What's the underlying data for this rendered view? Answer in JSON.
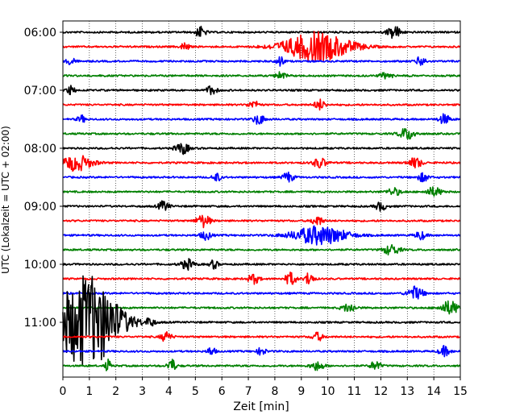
{
  "chart_data": {
    "type": "line",
    "subtype": "helicorder",
    "xlabel": "Zeit  [min]",
    "ylabel": "UTC (Lokalzeit = UTC + 02:00)",
    "xlim": [
      0,
      15
    ],
    "x_ticks": [
      "0",
      "1",
      "2",
      "3",
      "4",
      "5",
      "6",
      "7",
      "8",
      "9",
      "10",
      "11",
      "12",
      "13",
      "14",
      "15"
    ],
    "y_ticks": [
      "06:00",
      "07:00",
      "08:00",
      "09:00",
      "10:00",
      "11:00"
    ],
    "grid": "vertical dotted lines at each minute",
    "trace_interval_minutes": 15,
    "colors": [
      "#000000",
      "#ff0000",
      "#0000ff",
      "#008000"
    ],
    "traces": [
      {
        "start": "06:00",
        "color": "#000000",
        "events": [
          {
            "t": 5.2,
            "amp": 0.35,
            "dur": 0.4
          },
          {
            "t": 12.5,
            "amp": 0.45,
            "dur": 0.5
          }
        ]
      },
      {
        "start": "06:15",
        "color": "#ff0000",
        "events": [
          {
            "t": 4.6,
            "amp": 0.3,
            "dur": 0.3
          },
          {
            "t": 9.6,
            "amp": 1.0,
            "dur": 2.5
          }
        ]
      },
      {
        "start": "06:30",
        "color": "#0000ff",
        "events": [
          {
            "t": 0.3,
            "amp": 0.3,
            "dur": 0.3
          },
          {
            "t": 8.2,
            "amp": 0.35,
            "dur": 0.3
          },
          {
            "t": 13.5,
            "amp": 0.3,
            "dur": 0.4
          }
        ]
      },
      {
        "start": "06:45",
        "color": "#008000",
        "events": [
          {
            "t": 8.2,
            "amp": 0.25,
            "dur": 0.4
          },
          {
            "t": 12.2,
            "amp": 0.2,
            "dur": 0.5
          }
        ]
      },
      {
        "start": "07:00",
        "color": "#000000",
        "events": [
          {
            "t": 0.3,
            "amp": 0.3,
            "dur": 0.3
          },
          {
            "t": 5.6,
            "amp": 0.3,
            "dur": 0.4
          }
        ]
      },
      {
        "start": "07:15",
        "color": "#ff0000",
        "events": [
          {
            "t": 7.2,
            "amp": 0.25,
            "dur": 0.4
          },
          {
            "t": 9.7,
            "amp": 0.35,
            "dur": 0.4
          }
        ]
      },
      {
        "start": "07:30",
        "color": "#0000ff",
        "events": [
          {
            "t": 0.7,
            "amp": 0.25,
            "dur": 0.3
          },
          {
            "t": 7.4,
            "amp": 0.35,
            "dur": 0.4
          },
          {
            "t": 14.4,
            "amp": 0.35,
            "dur": 0.4
          }
        ]
      },
      {
        "start": "07:45",
        "color": "#008000",
        "events": [
          {
            "t": 13.0,
            "amp": 0.4,
            "dur": 0.6
          }
        ]
      },
      {
        "start": "08:00",
        "color": "#000000",
        "events": [
          {
            "t": 4.5,
            "amp": 0.4,
            "dur": 0.5
          }
        ]
      },
      {
        "start": "08:15",
        "color": "#ff0000",
        "events": [
          {
            "t": 0.5,
            "amp": 0.55,
            "dur": 1.2
          },
          {
            "t": 9.7,
            "amp": 0.35,
            "dur": 0.5
          },
          {
            "t": 13.3,
            "amp": 0.35,
            "dur": 0.5
          }
        ]
      },
      {
        "start": "08:30",
        "color": "#0000ff",
        "events": [
          {
            "t": 5.8,
            "amp": 0.3,
            "dur": 0.3
          },
          {
            "t": 8.5,
            "amp": 0.35,
            "dur": 0.4
          },
          {
            "t": 13.6,
            "amp": 0.3,
            "dur": 0.4
          }
        ]
      },
      {
        "start": "08:45",
        "color": "#008000",
        "events": [
          {
            "t": 12.5,
            "amp": 0.25,
            "dur": 0.5
          },
          {
            "t": 14.0,
            "amp": 0.3,
            "dur": 0.6
          }
        ]
      },
      {
        "start": "09:00",
        "color": "#000000",
        "events": [
          {
            "t": 3.8,
            "amp": 0.35,
            "dur": 0.4
          },
          {
            "t": 12.0,
            "amp": 0.3,
            "dur": 0.4
          }
        ]
      },
      {
        "start": "09:15",
        "color": "#ff0000",
        "events": [
          {
            "t": 5.3,
            "amp": 0.45,
            "dur": 0.5
          },
          {
            "t": 9.6,
            "amp": 0.35,
            "dur": 0.4
          }
        ]
      },
      {
        "start": "09:30",
        "color": "#0000ff",
        "events": [
          {
            "t": 5.4,
            "amp": 0.3,
            "dur": 0.4
          },
          {
            "t": 9.7,
            "amp": 0.65,
            "dur": 2.0
          },
          {
            "t": 13.5,
            "amp": 0.3,
            "dur": 0.4
          }
        ]
      },
      {
        "start": "09:45",
        "color": "#008000",
        "events": [
          {
            "t": 12.4,
            "amp": 0.35,
            "dur": 0.6
          }
        ]
      },
      {
        "start": "10:00",
        "color": "#000000",
        "events": [
          {
            "t": 4.7,
            "amp": 0.35,
            "dur": 0.5
          },
          {
            "t": 5.7,
            "amp": 0.3,
            "dur": 0.3
          }
        ]
      },
      {
        "start": "10:15",
        "color": "#ff0000",
        "events": [
          {
            "t": 7.2,
            "amp": 0.35,
            "dur": 0.4
          },
          {
            "t": 8.6,
            "amp": 0.45,
            "dur": 0.4
          },
          {
            "t": 9.3,
            "amp": 0.5,
            "dur": 0.3
          }
        ]
      },
      {
        "start": "10:30",
        "color": "#0000ff",
        "events": [
          {
            "t": 13.3,
            "amp": 0.45,
            "dur": 0.6
          }
        ]
      },
      {
        "start": "10:45",
        "color": "#008000",
        "events": [
          {
            "t": 10.8,
            "amp": 0.3,
            "dur": 0.5
          },
          {
            "t": 14.6,
            "amp": 0.45,
            "dur": 0.7
          }
        ]
      },
      {
        "start": "11:00",
        "color": "#000000",
        "events": [
          {
            "t": 0.9,
            "amp": 3.2,
            "dur": 2.4
          },
          {
            "t": 3.3,
            "amp": 0.3,
            "dur": 0.3
          }
        ]
      },
      {
        "start": "11:15",
        "color": "#ff0000",
        "events": [
          {
            "t": 3.9,
            "amp": 0.35,
            "dur": 0.4
          },
          {
            "t": 9.6,
            "amp": 0.3,
            "dur": 0.4
          }
        ]
      },
      {
        "start": "11:30",
        "color": "#0000ff",
        "events": [
          {
            "t": 5.6,
            "amp": 0.3,
            "dur": 0.3
          },
          {
            "t": 7.5,
            "amp": 0.3,
            "dur": 0.3
          },
          {
            "t": 14.4,
            "amp": 0.35,
            "dur": 0.4
          }
        ]
      },
      {
        "start": "11:45",
        "color": "#008000",
        "events": [
          {
            "t": 1.7,
            "amp": 0.45,
            "dur": 0.2
          },
          {
            "t": 4.1,
            "amp": 0.5,
            "dur": 0.3
          },
          {
            "t": 9.6,
            "amp": 0.3,
            "dur": 0.5
          },
          {
            "t": 11.8,
            "amp": 0.3,
            "dur": 0.4
          }
        ]
      }
    ]
  }
}
